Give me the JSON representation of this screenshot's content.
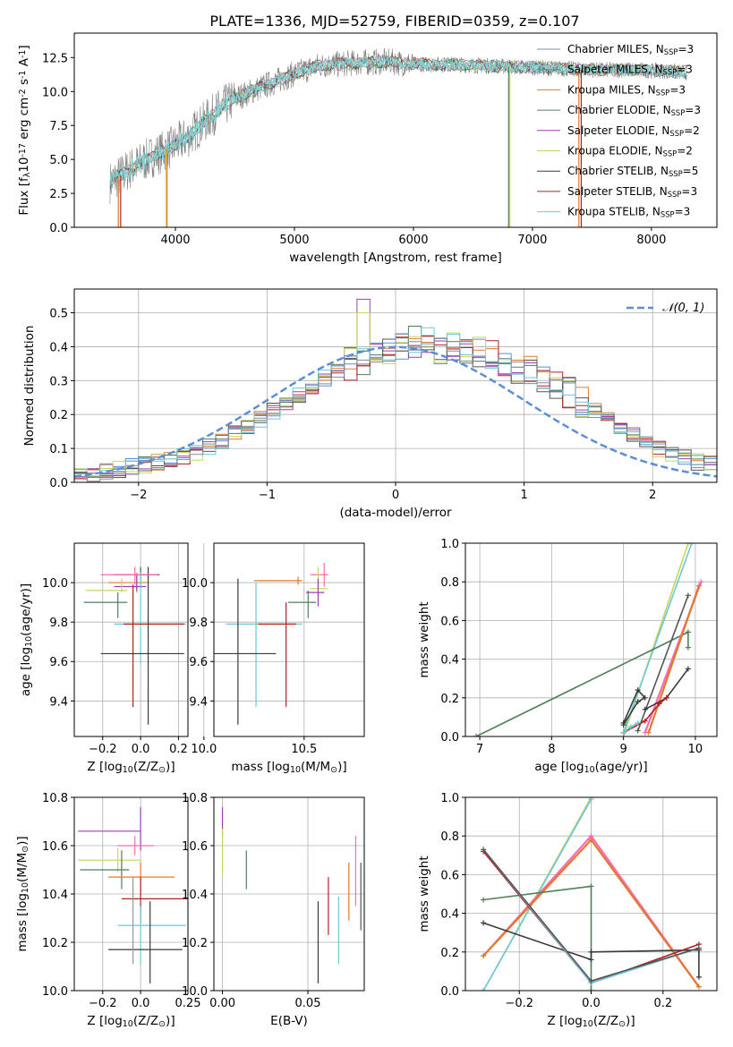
{
  "figure_title": "PLATE=1336, MJD=52759, FIBERID=0359, z=0.107",
  "colors": {
    "legend": [
      "#7a8fa0",
      "#2ca0a0",
      "#e07a2e",
      "#4f7f5a",
      "#9b3fb5",
      "#c8d45a",
      "#3a3a3a",
      "#b22222",
      "#6cc8d8"
    ],
    "ssp_cycle": [
      "#555555",
      "#e07a2e",
      "#9b3fb5",
      "#4f7f5a",
      "#c8d45a",
      "#6cc8d8",
      "#ff69b4",
      "#b22222",
      "#999999",
      "#3a3a3a"
    ],
    "gaussian": "#5a8fd6"
  },
  "chart_data": [
    {
      "id": "spectrum",
      "type": "line",
      "xlabel": "wavelength [Angstrom, rest frame]",
      "ylabel": "Flux [f$_\\lambda$10$^{-17}$ erg cm$^{-2}$ s$^{-1}$ A$^{-1}$]",
      "xlim": [
        3150,
        8550
      ],
      "ylim": [
        0,
        14.3
      ],
      "xticks": [
        "4000",
        "5000",
        "6000",
        "7000",
        "8000"
      ],
      "yticks": [
        "0.0",
        "2.5",
        "5.0",
        "7.5",
        "10.0",
        "12.5"
      ],
      "grid": false,
      "legend_position": "right",
      "series": [
        {
          "name": "Chabrier MILES, N$_{SSP}$=3"
        },
        {
          "name": "Salpeter MILES, N$_{SSP}$=3"
        },
        {
          "name": "Kroupa MILES, N$_{SSP}$=3"
        },
        {
          "name": "Chabrier ELODIE, N$_{SSP}$=3"
        },
        {
          "name": "Salpeter ELODIE, N$_{SSP}$=2"
        },
        {
          "name": "Kroupa ELODIE, N$_{SSP}$=2"
        },
        {
          "name": "Chabrier STELIB, N$_{SSP}$=5"
        },
        {
          "name": "Salpeter STELIB, N$_{SSP}$=3"
        },
        {
          "name": "Kroupa STELIB, N$_{SSP}$=3"
        }
      ],
      "data_continuum": {
        "x": [
          3450,
          3600,
          3800,
          3950,
          4100,
          4300,
          4500,
          4800,
          5000,
          5200,
          5500,
          5800,
          6000,
          6300,
          6600,
          6900,
          7200,
          7500,
          7800,
          8100,
          8300
        ],
        "y": [
          3.3,
          4.2,
          5.2,
          5.8,
          6.6,
          8.2,
          9.5,
          10.6,
          11.3,
          11.9,
          12.1,
          12.2,
          12.0,
          12.0,
          11.9,
          11.8,
          11.7,
          11.6,
          11.6,
          11.5,
          11.4
        ]
      }
    },
    {
      "id": "residuals",
      "type": "step",
      "xlabel": "(data-model)/error",
      "ylabel": "Normed distribution",
      "xlim": [
        -2.5,
        2.5
      ],
      "ylim": [
        0,
        0.57
      ],
      "xticks": [
        "−2",
        "−1",
        "0",
        "1",
        "2"
      ],
      "yticks": [
        "0.0",
        "0.1",
        "0.2",
        "0.3",
        "0.4",
        "0.5"
      ],
      "grid": true,
      "legend_label": "$\\mathcal{N}(0, 1)$",
      "legend_position": "top-right",
      "bin_edges_start": -2.5,
      "bin_width": 0.1,
      "base_histogram": [
        0.022,
        0.025,
        0.032,
        0.038,
        0.045,
        0.051,
        0.058,
        0.066,
        0.076,
        0.09,
        0.106,
        0.124,
        0.143,
        0.164,
        0.186,
        0.21,
        0.235,
        0.26,
        0.285,
        0.309,
        0.33,
        0.35,
        0.367,
        0.381,
        0.393,
        0.408,
        0.412,
        0.407,
        0.398,
        0.402,
        0.393,
        0.381,
        0.368,
        0.357,
        0.34,
        0.325,
        0.3,
        0.278,
        0.264,
        0.235,
        0.212,
        0.188,
        0.166,
        0.14,
        0.118,
        0.099,
        0.087,
        0.074,
        0.06,
        0.053,
        0.047,
        0.041,
        0.034,
        0.027,
        0.021,
        0.015,
        0.012,
        0.01,
        0.009,
        0.008
      ]
    },
    {
      "id": "age_vs_Z",
      "type": "errorbar",
      "xlabel": "Z [log$_{10}$(Z/Z$_\\odot$)]",
      "ylabel": "age  [log$_{10}$(age/yr)]",
      "xlim": [
        -0.35,
        0.25
      ],
      "ylim": [
        9.22,
        10.2
      ],
      "xticks": [
        "−0.2",
        "0.0",
        "0.2"
      ],
      "yticks": [
        "9.4",
        "9.6",
        "9.8",
        "10.0"
      ],
      "grid": true,
      "points": [
        {
          "x": 0.0,
          "y": 10.04,
          "xerr": [
            0.14,
            0.1
          ],
          "yerr": [
            0.06,
            0.04
          ],
          "c": 0
        },
        {
          "x": -0.02,
          "y": 10.0,
          "xerr": [
            0.15,
            0.06
          ],
          "yerr": [
            0.05,
            0.05
          ],
          "c": 1
        },
        {
          "x": -0.02,
          "y": 9.98,
          "xerr": [
            0.12,
            0.05
          ],
          "yerr": [
            0.02,
            0.06
          ],
          "c": 2
        },
        {
          "x": -0.1,
          "y": 9.96,
          "xerr": [
            0.19,
            0.03
          ],
          "yerr": [
            0.01,
            0.06
          ],
          "c": 4
        },
        {
          "x": -0.12,
          "y": 9.9,
          "xerr": [
            0.18,
            0.05
          ],
          "yerr": [
            0.08,
            0.05
          ],
          "c": 3
        },
        {
          "x": 0.0,
          "y": 9.79,
          "xerr": [
            0.14,
            0.24
          ],
          "yerr": [
            0.2,
            0.26
          ],
          "c": 5
        },
        {
          "x": -0.04,
          "y": 9.79,
          "xerr": [
            0.05,
            0.27
          ],
          "yerr": [
            0.42,
            0.2
          ],
          "c": 7
        },
        {
          "x": 0.04,
          "y": 9.64,
          "xerr": [
            0.25,
            0.19
          ],
          "yerr": [
            0.36,
            0.44
          ],
          "c": 9
        },
        {
          "x": -0.03,
          "y": 10.04,
          "xerr": [
            0.18,
            0.12
          ],
          "yerr": [
            0.05,
            0.04
          ],
          "c": 6
        }
      ]
    },
    {
      "id": "age_vs_mass",
      "type": "errorbar",
      "xlabel": "mass [log$_{10}$(M/M$_\\odot$)]",
      "ylabel": "",
      "xlim": [
        10.05,
        10.8
      ],
      "ylim": [
        9.22,
        10.2
      ],
      "xticks": [
        "10.0",
        "10.5"
      ],
      "yticks": [
        "9.4",
        "9.6",
        "9.8",
        "10.0"
      ],
      "grid": true,
      "points": [
        {
          "x": 10.6,
          "y": 10.04,
          "xerr": [
            0.07,
            0.02
          ],
          "yerr": [
            0.06,
            0.06
          ],
          "c": 6
        },
        {
          "x": 10.47,
          "y": 10.01,
          "xerr": [
            0.22,
            0.02
          ],
          "yerr": [
            0.02,
            0.02
          ],
          "c": 1
        },
        {
          "x": 10.57,
          "y": 9.97,
          "xerr": [
            0.04,
            0.05
          ],
          "yerr": [
            0.06,
            0.11
          ],
          "c": 4
        },
        {
          "x": 10.57,
          "y": 9.95,
          "xerr": [
            0.06,
            0.03
          ],
          "yerr": [
            0.07,
            0.07
          ],
          "c": 2
        },
        {
          "x": 10.52,
          "y": 9.9,
          "xerr": [
            0.1,
            0.04
          ],
          "yerr": [
            0.08,
            0.06
          ],
          "c": 3
        },
        {
          "x": 10.26,
          "y": 9.79,
          "xerr": [
            0.15,
            0.23
          ],
          "yerr": [
            0.42,
            0.21
          ],
          "c": 5
        },
        {
          "x": 10.41,
          "y": 9.79,
          "xerr": [
            0.14,
            0.05
          ],
          "yerr": [
            0.42,
            0.11
          ],
          "c": 7
        },
        {
          "x": 10.17,
          "y": 9.64,
          "xerr": [
            0.16,
            0.19
          ],
          "yerr": [
            0.36,
            0.38
          ],
          "c": 9
        }
      ]
    },
    {
      "id": "mass_weight_vs_age",
      "type": "line",
      "xlabel": "age  [log$_{10}$(age/yr)]",
      "ylabel": "mass weight",
      "xlim": [
        6.8,
        10.3
      ],
      "ylim": [
        0,
        1.0
      ],
      "xticks": [
        "7",
        "8",
        "9",
        "10"
      ],
      "yticks": [
        "0.0",
        "0.2",
        "0.4",
        "0.6",
        "0.8",
        "1.0"
      ],
      "grid": true,
      "series": [
        {
          "c": 4,
          "x": [
            9.0,
            9.9
          ],
          "y": [
            0.0,
            1.0
          ]
        },
        {
          "c": 5,
          "x": [
            9.0,
            9.95
          ],
          "y": [
            0.02,
            1.0
          ]
        },
        {
          "c": 3,
          "x": [
            6.95,
            9.9
          ],
          "y": [
            0.0,
            0.54
          ]
        },
        {
          "c": 3,
          "x": [
            9.9,
            9.9
          ],
          "y": [
            0.46,
            0.54
          ]
        },
        {
          "c": 0,
          "x": [
            9.2,
            9.9
          ],
          "y": [
            0.03,
            0.73
          ]
        },
        {
          "c": 6,
          "x": [
            9.3,
            10.08
          ],
          "y": [
            0.02,
            0.8
          ]
        },
        {
          "c": 1,
          "x": [
            9.35,
            10.05
          ],
          "y": [
            0.02,
            0.78
          ]
        },
        {
          "c": 9,
          "x": [
            9.0,
            9.2,
            9.3,
            9.2,
            9.0
          ],
          "y": [
            0.07,
            0.24,
            0.2,
            0.18,
            0.06
          ]
        },
        {
          "c": 9,
          "x": [
            9.3,
            9.6,
            9.9
          ],
          "y": [
            0.14,
            0.2,
            0.35
          ]
        },
        {
          "c": 7,
          "x": [
            9.0,
            9.3,
            9.5,
            9.6
          ],
          "y": [
            0.02,
            0.08,
            0.17,
            0.2
          ]
        },
        {
          "c": 5,
          "x": [
            9.0,
            9.1,
            9.2
          ],
          "y": [
            0.02,
            0.05,
            0.07
          ]
        }
      ]
    },
    {
      "id": "mass_vs_Z",
      "type": "errorbar",
      "xlabel": "Z [log$_{10}$(Z/Z$_\\odot$)]",
      "ylabel": "mass [log$_{10}$(M/M$_\\odot$)]",
      "xlim": [
        -0.35,
        0.25
      ],
      "ylim": [
        10.0,
        10.8
      ],
      "xticks": [
        "−0.2",
        "0.0",
        "0.25"
      ],
      "yticks": [
        "10.0",
        "10.2",
        "10.4",
        "10.6",
        "10.8"
      ],
      "grid": true,
      "points": [
        {
          "x": 0.0,
          "y": 10.66,
          "xerr": [
            0.33,
            0.0
          ],
          "yerr": [
            0.08,
            0.1
          ],
          "c": 2
        },
        {
          "x": -0.03,
          "y": 10.6,
          "xerr": [
            0.09,
            0.1
          ],
          "yerr": [
            0.04,
            0.04
          ],
          "c": 6
        },
        {
          "x": -0.12,
          "y": 10.54,
          "xerr": [
            0.21,
            0.12
          ],
          "yerr": [
            0.05,
            0.05
          ],
          "c": 4
        },
        {
          "x": -0.1,
          "y": 10.5,
          "xerr": [
            0.22,
            0.04
          ],
          "yerr": [
            0.08,
            0.08
          ],
          "c": 3
        },
        {
          "x": 0.0,
          "y": 10.47,
          "xerr": [
            0.17,
            0.18
          ],
          "yerr": [
            0.08,
            0.06
          ],
          "c": 1
        },
        {
          "x": 0.0,
          "y": 10.38,
          "xerr": [
            0.1,
            0.25
          ],
          "yerr": [
            0.1,
            0.09
          ],
          "c": 7
        },
        {
          "x": 0.0,
          "y": 10.27,
          "xerr": [
            0.12,
            0.24
          ],
          "yerr": [
            0.16,
            0.08
          ],
          "c": 5
        },
        {
          "x": 0.05,
          "y": 10.17,
          "xerr": [
            0.22,
            0.17
          ],
          "yerr": [
            0.14,
            0.2
          ],
          "c": 9
        },
        {
          "x": -0.04,
          "y": 10.32,
          "xerr": [
            0.0,
            0.0
          ],
          "yerr": [
            0.21,
            0.15
          ],
          "c": 8
        }
      ]
    },
    {
      "id": "mass_vs_EBV",
      "type": "errorbar",
      "xlabel": "E(B-V)",
      "ylabel": "",
      "xlim": [
        -0.005,
        0.083
      ],
      "ylim": [
        10.0,
        10.8
      ],
      "xticks": [
        "0.00",
        "0.05"
      ],
      "yticks": [
        "10.0",
        "10.2",
        "10.4",
        "10.6",
        "10.8"
      ],
      "grid": true,
      "points": [
        {
          "x": 0.0,
          "y": 10.7,
          "xerr": [
            0,
            0
          ],
          "yerr": [
            0.06,
            0.06
          ],
          "c": 2
        },
        {
          "x": 0.0,
          "y": 10.55,
          "xerr": [
            0,
            0
          ],
          "yerr": [
            0.07,
            0.12
          ],
          "c": 4
        },
        {
          "x": 0.014,
          "y": 10.5,
          "xerr": [
            0,
            0
          ],
          "yerr": [
            0.08,
            0.08
          ],
          "c": 3
        },
        {
          "x": 0.056,
          "y": 10.2,
          "xerr": [
            0,
            0
          ],
          "yerr": [
            0.17,
            0.17
          ],
          "c": 9
        },
        {
          "x": 0.062,
          "y": 10.35,
          "xerr": [
            0,
            0
          ],
          "yerr": [
            0.12,
            0.12
          ],
          "c": 7
        },
        {
          "x": 0.068,
          "y": 10.25,
          "xerr": [
            0,
            0
          ],
          "yerr": [
            0.14,
            0.14
          ],
          "c": 5
        },
        {
          "x": 0.074,
          "y": 10.42,
          "xerr": [
            0,
            0
          ],
          "yerr": [
            0.13,
            0.11
          ],
          "c": 1
        },
        {
          "x": 0.078,
          "y": 10.47,
          "xerr": [
            0,
            0
          ],
          "yerr": [
            0.12,
            0.17
          ],
          "c": 6
        },
        {
          "x": 0.081,
          "y": 10.39,
          "xerr": [
            0,
            0
          ],
          "yerr": [
            0.14,
            0.14
          ],
          "c": 0
        }
      ]
    },
    {
      "id": "mass_weight_vs_Z",
      "type": "line",
      "xlabel": "Z [log$_{10}$(Z/Z$_\\odot$)]",
      "ylabel": "mass weight",
      "xlim": [
        -0.35,
        0.35
      ],
      "ylim": [
        0,
        1.0
      ],
      "xticks": [
        "−0.2",
        "0.0",
        "0.2"
      ],
      "yticks": [
        "0.0",
        "0.2",
        "0.4",
        "0.6",
        "0.8",
        "1.0"
      ],
      "grid": true,
      "series": [
        {
          "c": 4,
          "x": [
            -0.3,
            0.0
          ],
          "y": [
            0.0,
            1.0
          ]
        },
        {
          "c": 5,
          "x": [
            -0.3,
            0.0
          ],
          "y": [
            0.0,
            0.99
          ]
        },
        {
          "c": 6,
          "x": [
            -0.3,
            0.0,
            0.3
          ],
          "y": [
            0.18,
            0.8,
            0.02
          ]
        },
        {
          "c": 1,
          "x": [
            -0.3,
            0.0,
            0.3
          ],
          "y": [
            0.18,
            0.78,
            0.02
          ]
        },
        {
          "c": 3,
          "x": [
            -0.3,
            0.0,
            0.0
          ],
          "y": [
            0.47,
            0.54,
            0.0
          ]
        },
        {
          "c": 9,
          "x": [
            -0.3,
            0.0,
            0.0,
            0.3,
            0.3
          ],
          "y": [
            0.35,
            0.16,
            0.2,
            0.21,
            0.07
          ]
        },
        {
          "c": 7,
          "x": [
            -0.3,
            0.0,
            0.3
          ],
          "y": [
            0.72,
            0.04,
            0.24
          ]
        },
        {
          "c": 5,
          "x": [
            -0.3,
            0.0,
            0.3
          ],
          "y": [
            0.73,
            0.04,
            0.22
          ]
        },
        {
          "c": 0,
          "x": [
            -0.3,
            0.0,
            0.3
          ],
          "y": [
            0.73,
            0.05,
            0.22
          ]
        }
      ]
    }
  ]
}
